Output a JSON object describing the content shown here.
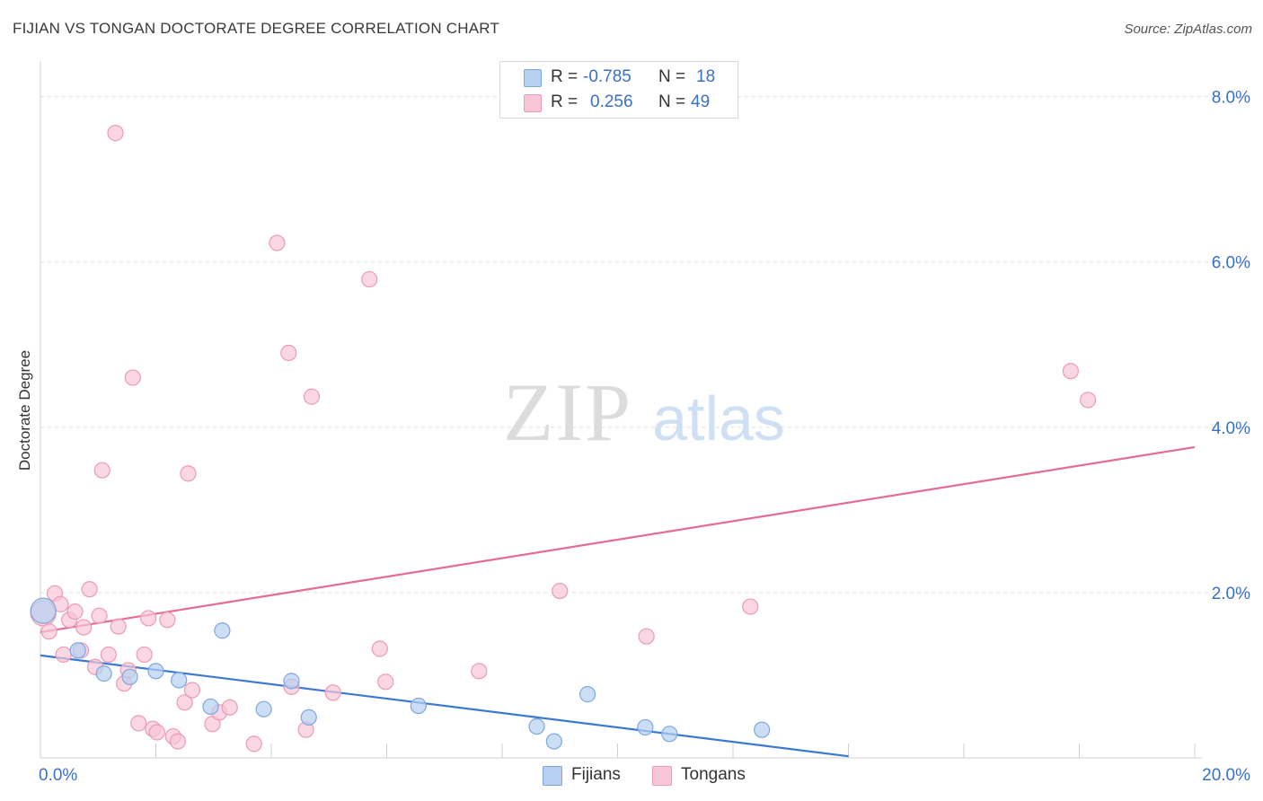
{
  "title": "FIJIAN VS TONGAN DOCTORATE DEGREE CORRELATION CHART",
  "source": "Source: ZipAtlas.com",
  "watermark": {
    "zip": "ZIP",
    "atlas": "atlas"
  },
  "colors": {
    "fijians_fill": "#b7d0f2",
    "fijians_stroke": "#7ea7df",
    "fijians_line": "#3a78d6",
    "tongans_fill": "#f8c6d6",
    "tongans_stroke": "#ec9ab6",
    "tongans_line": "#e56b97",
    "tick_text": "#3a6fc9"
  },
  "stats": [
    {
      "r_label": "R =",
      "r_value": "-0.785",
      "n_label": "N =",
      "n_value": "18"
    },
    {
      "r_label": "R =",
      "r_value": "0.256",
      "n_label": "N =",
      "n_value": "49"
    }
  ],
  "legend": {
    "fijians": "Fijians",
    "tongans": "Tongans"
  },
  "chart_data": {
    "type": "scatter",
    "title": "FIJIAN VS TONGAN DOCTORATE DEGREE CORRELATION CHART",
    "xlabel": "",
    "ylabel": "Doctorate Degree",
    "xlim": [
      0,
      20
    ],
    "ylim": [
      0,
      8.3
    ],
    "x_tick_labels": [
      "0.0%",
      "20.0%"
    ],
    "y_ticks": [
      2,
      4,
      6,
      8
    ],
    "y_tick_labels": [
      "2.0%",
      "4.0%",
      "6.0%",
      "8.0%"
    ],
    "grid": true,
    "series": [
      {
        "name": "Fijians",
        "r": -0.785,
        "n": 18,
        "trend": {
          "x": [
            0,
            14
          ],
          "y": [
            1.24,
            0.02
          ]
        },
        "points": [
          [
            0.05,
            1.78
          ],
          [
            0.65,
            1.3
          ],
          [
            1.1,
            1.02
          ],
          [
            1.55,
            0.98
          ],
          [
            2.0,
            1.05
          ],
          [
            2.4,
            0.94
          ],
          [
            2.95,
            0.62
          ],
          [
            3.15,
            1.54
          ],
          [
            3.87,
            0.59
          ],
          [
            4.35,
            0.93
          ],
          [
            4.65,
            0.49
          ],
          [
            6.55,
            0.63
          ],
          [
            8.6,
            0.38
          ],
          [
            8.9,
            0.2
          ],
          [
            9.48,
            0.77
          ],
          [
            10.48,
            0.37
          ],
          [
            10.9,
            0.29
          ],
          [
            12.5,
            0.34
          ]
        ]
      },
      {
        "name": "Tongans",
        "r": 0.256,
        "n": 49,
        "trend": {
          "x": [
            0,
            20
          ],
          "y": [
            1.52,
            3.76
          ]
        },
        "points": [
          [
            0.05,
            1.75
          ],
          [
            0.15,
            1.53
          ],
          [
            0.25,
            1.99
          ],
          [
            0.35,
            1.86
          ],
          [
            0.4,
            1.25
          ],
          [
            0.5,
            1.67
          ],
          [
            0.6,
            1.77
          ],
          [
            0.7,
            1.3
          ],
          [
            0.75,
            1.58
          ],
          [
            0.85,
            2.04
          ],
          [
            0.95,
            1.1
          ],
          [
            1.02,
            1.72
          ],
          [
            1.07,
            3.48
          ],
          [
            1.18,
            1.25
          ],
          [
            1.3,
            7.56
          ],
          [
            1.35,
            1.59
          ],
          [
            1.45,
            0.9
          ],
          [
            1.52,
            1.06
          ],
          [
            1.6,
            4.6
          ],
          [
            1.7,
            0.42
          ],
          [
            1.8,
            1.25
          ],
          [
            1.87,
            1.69
          ],
          [
            1.95,
            0.35
          ],
          [
            2.02,
            0.31
          ],
          [
            2.2,
            1.67
          ],
          [
            2.3,
            0.26
          ],
          [
            2.38,
            0.2
          ],
          [
            2.5,
            0.67
          ],
          [
            2.56,
            3.44
          ],
          [
            2.63,
            0.82
          ],
          [
            2.98,
            0.41
          ],
          [
            3.1,
            0.55
          ],
          [
            3.28,
            0.61
          ],
          [
            3.7,
            0.17
          ],
          [
            4.1,
            6.23
          ],
          [
            4.3,
            4.9
          ],
          [
            4.35,
            0.86
          ],
          [
            4.6,
            0.34
          ],
          [
            4.7,
            4.37
          ],
          [
            5.07,
            0.79
          ],
          [
            5.7,
            5.79
          ],
          [
            5.88,
            1.32
          ],
          [
            5.98,
            0.92
          ],
          [
            7.6,
            1.05
          ],
          [
            9.0,
            2.02
          ],
          [
            10.5,
            1.47
          ],
          [
            12.3,
            1.83
          ],
          [
            17.85,
            4.68
          ],
          [
            18.15,
            4.33
          ]
        ]
      }
    ]
  }
}
